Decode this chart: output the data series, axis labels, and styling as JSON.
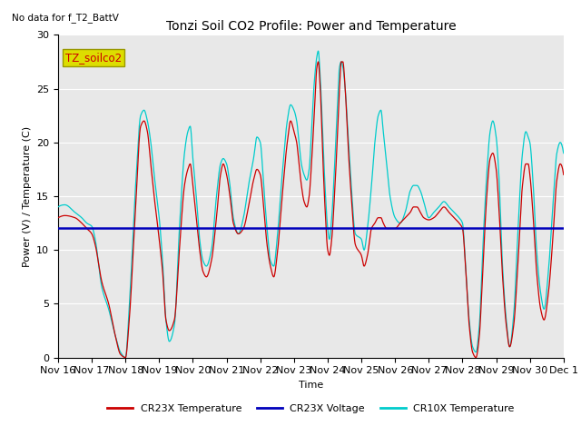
{
  "title": "Tonzi Soil CO2 Profile: Power and Temperature",
  "subtitle": "No data for f_T2_BattV",
  "ylabel": "Power (V) / Temperature (C)",
  "xlabel": "Time",
  "ylim": [
    0,
    30
  ],
  "voltage_value": 12.0,
  "plot_bg_color": "#e8e8e8",
  "cr23x_color": "#cc0000",
  "cr10x_color": "#00cccc",
  "voltage_color": "#0000bb",
  "annotation_text": "TZ_soilco2",
  "annotation_color": "#cc0000",
  "annotation_bg": "#dddd00",
  "annotation_edge": "#999900",
  "tick_labels": [
    "Nov 16",
    "Nov 17",
    "Nov 18",
    "Nov 19",
    "Nov 20",
    "Nov 21",
    "Nov 22",
    "Nov 23",
    "Nov 24",
    "Nov 25",
    "Nov 26",
    "Nov 27",
    "Nov 28",
    "Nov 29",
    "Nov 30",
    "Dec 1"
  ],
  "figwidth": 6.4,
  "figheight": 4.8,
  "dpi": 100
}
